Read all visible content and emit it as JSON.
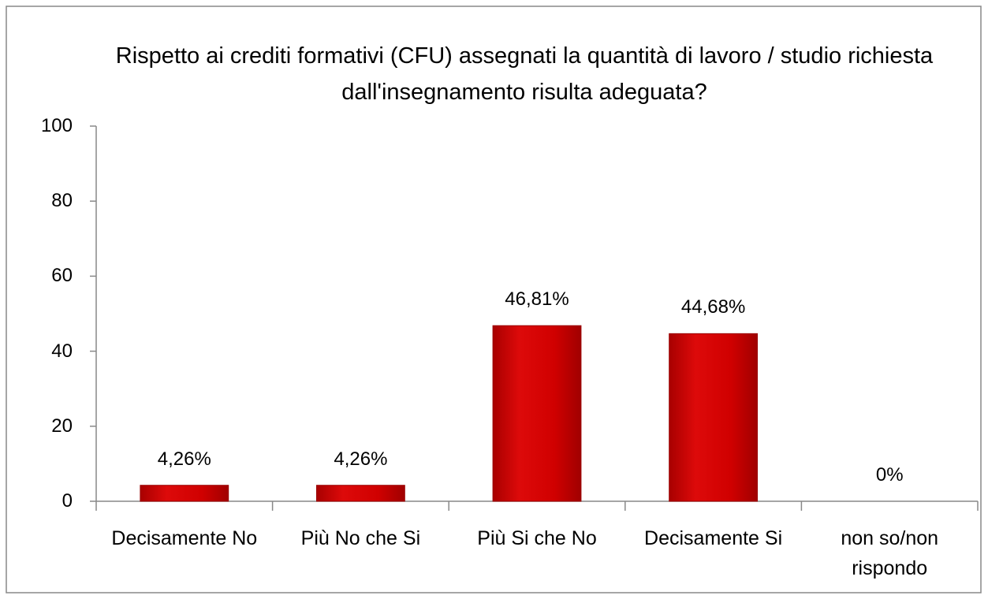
{
  "chart_data": {
    "type": "bar",
    "title": "Rispetto ai crediti formativi (CFU) assegnati la quantità di lavoro / studio richiesta dall'insegnamento risulta adeguata?",
    "categories": [
      "Decisamente No",
      "Più No che Si",
      "Più Si che No",
      "Decisamente Si",
      "non so/non rispondo"
    ],
    "values": [
      4.26,
      4.26,
      46.81,
      44.68,
      0
    ],
    "value_labels": [
      "4,26%",
      "4,26%",
      "46,81%",
      "44,68%",
      "0%"
    ],
    "color": "#cc0000",
    "ylim": [
      0,
      100
    ],
    "yticks": [
      0,
      20,
      40,
      60,
      80,
      100
    ],
    "grid": false
  }
}
